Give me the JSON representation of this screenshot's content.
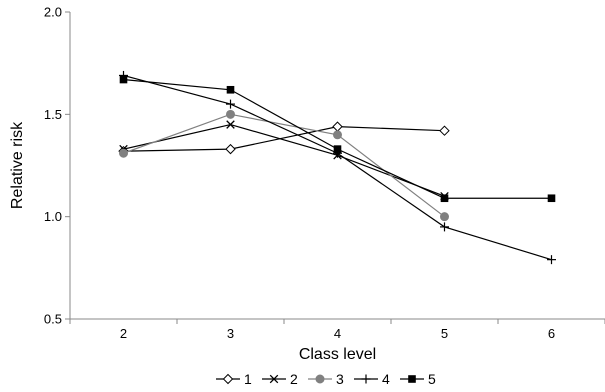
{
  "chart_data": {
    "type": "line",
    "xlabel": "Class level",
    "ylabel": "Relative risk",
    "x_ticks": [
      "2",
      "3",
      "4",
      "5",
      "6"
    ],
    "y_ticks": [
      "0.5",
      "1.0",
      "1.5",
      "2.0"
    ],
    "xlim": [
      1.5,
      6.5
    ],
    "ylim": [
      0.5,
      2.0
    ],
    "grid": false,
    "legend_position": "bottom",
    "series": [
      {
        "name": "1",
        "marker": "diamond-open",
        "color": "#000000",
        "x": [
          2,
          3,
          4,
          5
        ],
        "y": [
          1.32,
          1.33,
          1.44,
          1.42
        ]
      },
      {
        "name": "2",
        "marker": "x",
        "color": "#000000",
        "x": [
          2,
          3,
          4,
          5
        ],
        "y": [
          1.33,
          1.45,
          1.3,
          1.1
        ]
      },
      {
        "name": "3",
        "marker": "circle-filled",
        "color": "#808080",
        "x": [
          2,
          3,
          4,
          5
        ],
        "y": [
          1.31,
          1.5,
          1.4,
          1.0
        ]
      },
      {
        "name": "4",
        "marker": "plus",
        "color": "#000000",
        "x": [
          2,
          3,
          4,
          5,
          6
        ],
        "y": [
          1.69,
          1.55,
          1.31,
          0.95,
          0.79
        ]
      },
      {
        "name": "5",
        "marker": "square-filled",
        "color": "#000000",
        "x": [
          2,
          3,
          4,
          5,
          6
        ],
        "y": [
          1.67,
          1.62,
          1.33,
          1.09,
          1.09
        ]
      }
    ]
  }
}
